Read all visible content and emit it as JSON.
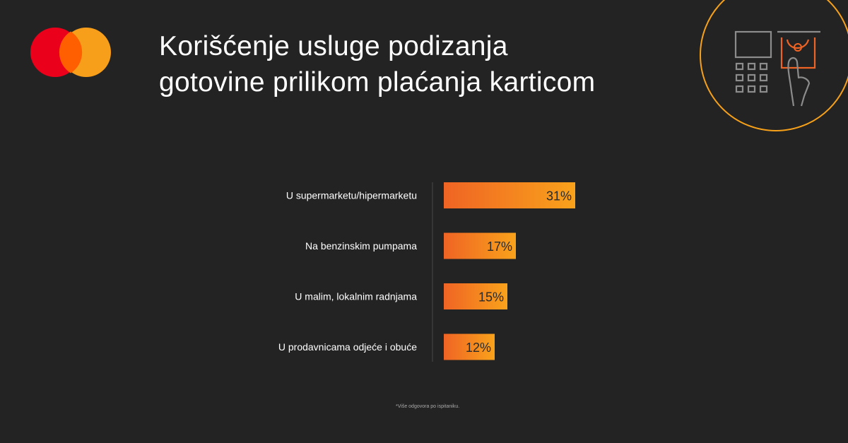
{
  "brand": {
    "logo_icon": "mastercard-logo",
    "colors": {
      "red": "#EB001B",
      "orange": "#F79E1B",
      "overlap": "#FF5F00"
    }
  },
  "title": {
    "line1": "Korišćenje usluge podizanja",
    "line2": "gotovine prilikom  plaćanja karticom"
  },
  "decorative_icon": "pos-terminal-cashback-icon",
  "accent_color": "#F7A11A",
  "chart_data": {
    "type": "bar",
    "orientation": "horizontal",
    "categories": [
      "U supermarketu/hipermarketu",
      "Na benzinskim pumpama",
      "U malim, lokalnim radnjama",
      "U prodavnicama odjeće i obuće"
    ],
    "values": [
      31,
      17,
      15,
      12
    ],
    "value_labels": [
      "31%",
      "17%",
      "15%",
      "12%"
    ],
    "title": "Korišćenje usluge podizanja gotovine prilikom plaćanja karticom",
    "xlabel": "",
    "ylabel": "",
    "xlim": [
      0,
      100
    ],
    "grid": false,
    "legend": "none",
    "bar_gradient": [
      "#EF6424",
      "#F9A21B"
    ]
  },
  "footnote": "*Više odgovora po ispitaniku."
}
